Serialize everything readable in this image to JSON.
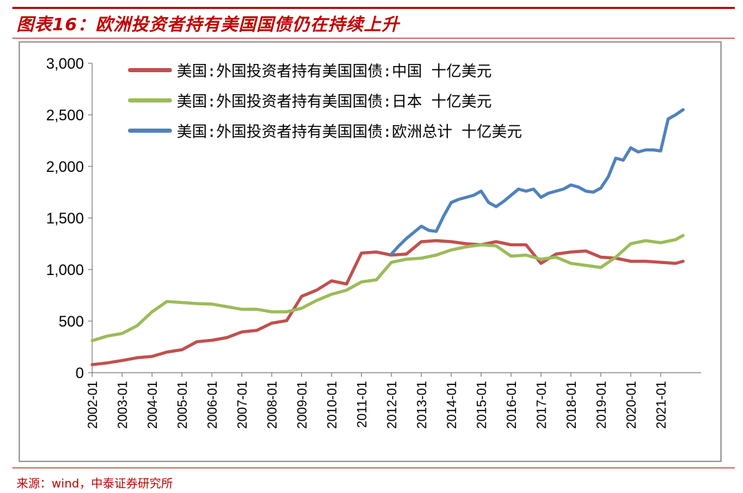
{
  "header": {
    "title": "图表16：欧洲投资者持有美国国债仍在持续上升"
  },
  "footer": {
    "source": "来源：wind，中泰证券研究所"
  },
  "chart_data": {
    "type": "line",
    "title": "图表16：欧洲投资者持有美国国债仍在持续上升",
    "xlabel": "",
    "ylabel": "",
    "ylim": [
      0,
      3000
    ],
    "y_ticks": [
      "0",
      "500",
      "1,000",
      "1,500",
      "2,000",
      "2,500",
      "3,000"
    ],
    "x_ticks": [
      "2002-01",
      "2003-01",
      "2004-01",
      "2005-01",
      "2006-01",
      "2007-01",
      "2008-01",
      "2009-01",
      "2010-01",
      "2011-01",
      "2012-01",
      "2013-01",
      "2014-01",
      "2015-01",
      "2016-01",
      "2017-01",
      "2018-01",
      "2019-01",
      "2020-01",
      "2021-01"
    ],
    "grid": false,
    "legend_position": "top-left",
    "colors": {
      "china": "#c0504d",
      "japan": "#9bbb59",
      "europe": "#4f81bd",
      "axis": "#808080",
      "accent": "#c00000"
    },
    "series": [
      {
        "name": "美国:外国投资者持有美国国债:中国 十亿美元",
        "color": "#c0504d",
        "x": [
          "2002-01",
          "2002-07",
          "2003-01",
          "2003-07",
          "2004-01",
          "2004-07",
          "2005-01",
          "2005-07",
          "2006-01",
          "2006-07",
          "2007-01",
          "2007-07",
          "2008-01",
          "2008-07",
          "2009-01",
          "2009-07",
          "2010-01",
          "2010-07",
          "2011-01",
          "2011-07",
          "2012-01",
          "2012-07",
          "2013-01",
          "2013-07",
          "2014-01",
          "2014-07",
          "2015-01",
          "2015-07",
          "2016-01",
          "2016-07",
          "2017-01",
          "2017-07",
          "2018-01",
          "2018-07",
          "2019-01",
          "2019-07",
          "2020-01",
          "2020-07",
          "2021-01",
          "2021-07",
          "2021-10"
        ],
        "values": [
          78,
          95,
          118,
          145,
          157,
          200,
          223,
          300,
          314,
          340,
          395,
          410,
          480,
          505,
          740,
          800,
          890,
          860,
          1160,
          1170,
          1140,
          1150,
          1270,
          1280,
          1270,
          1250,
          1240,
          1270,
          1240,
          1240,
          1060,
          1150,
          1170,
          1180,
          1120,
          1110,
          1080,
          1080,
          1070,
          1060,
          1080
        ]
      },
      {
        "name": "美国:外国投资者持有美国国债:日本 十亿美元",
        "color": "#9bbb59",
        "x": [
          "2002-01",
          "2002-07",
          "2003-01",
          "2003-07",
          "2004-01",
          "2004-07",
          "2005-01",
          "2005-07",
          "2006-01",
          "2006-07",
          "2007-01",
          "2007-07",
          "2008-01",
          "2008-07",
          "2009-01",
          "2009-07",
          "2010-01",
          "2010-07",
          "2011-01",
          "2011-07",
          "2012-01",
          "2012-07",
          "2013-01",
          "2013-07",
          "2014-01",
          "2014-07",
          "2015-01",
          "2015-07",
          "2016-01",
          "2016-07",
          "2017-01",
          "2017-07",
          "2018-01",
          "2018-07",
          "2019-01",
          "2019-07",
          "2020-01",
          "2020-07",
          "2021-01",
          "2021-07",
          "2021-10"
        ],
        "values": [
          310,
          355,
          380,
          455,
          590,
          690,
          680,
          670,
          665,
          640,
          615,
          615,
          590,
          590,
          625,
          700,
          760,
          800,
          880,
          900,
          1070,
          1100,
          1110,
          1140,
          1190,
          1220,
          1240,
          1230,
          1130,
          1140,
          1100,
          1120,
          1060,
          1040,
          1020,
          1120,
          1250,
          1280,
          1260,
          1290,
          1330
        ]
      },
      {
        "name": "美国:外国投资者持有美国国债:欧洲总计 十亿美元",
        "color": "#4f81bd",
        "x": [
          "2012-01",
          "2012-04",
          "2012-07",
          "2012-10",
          "2013-01",
          "2013-04",
          "2013-07",
          "2013-10",
          "2014-01",
          "2014-04",
          "2014-07",
          "2014-10",
          "2015-01",
          "2015-04",
          "2015-07",
          "2015-10",
          "2016-01",
          "2016-04",
          "2016-07",
          "2016-10",
          "2017-01",
          "2017-04",
          "2017-07",
          "2017-10",
          "2018-01",
          "2018-04",
          "2018-07",
          "2018-10",
          "2019-01",
          "2019-04",
          "2019-07",
          "2019-10",
          "2020-01",
          "2020-04",
          "2020-07",
          "2020-10",
          "2021-01",
          "2021-04",
          "2021-07",
          "2021-10"
        ],
        "values": [
          1150,
          1230,
          1300,
          1360,
          1420,
          1380,
          1370,
          1520,
          1650,
          1680,
          1700,
          1720,
          1760,
          1650,
          1610,
          1660,
          1720,
          1780,
          1760,
          1780,
          1700,
          1740,
          1760,
          1780,
          1820,
          1800,
          1760,
          1750,
          1790,
          1900,
          2080,
          2060,
          2180,
          2140,
          2160,
          2160,
          2150,
          2460,
          2500,
          2550
        ]
      }
    ]
  }
}
